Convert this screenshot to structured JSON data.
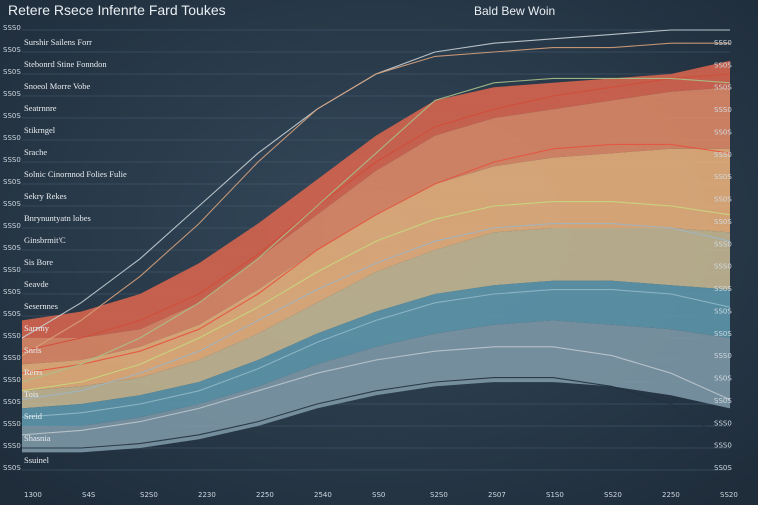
{
  "chart_data": {
    "type": "area",
    "title": "Retere Rsece Infenrte Fard Toukes",
    "subtitle": "Bald Bew Woin",
    "x_tick_labels": [
      "1300",
      "S4S",
      "S2S0",
      "2230",
      "2250",
      "2540",
      "SS0",
      "S2S0",
      "2S07",
      "S1S0",
      "SS20",
      "2250",
      "SS20"
    ],
    "left_tick_labels": [
      "SSS0",
      "SS0S",
      "SS0S",
      "SS0S",
      "SS0S",
      "SSS0",
      "SSS0",
      "SS0S",
      "SS0S",
      "SSS0",
      "SS0S",
      "SSS0",
      "SS0S",
      "SS0S",
      "SSS0",
      "SSS0",
      "SSS0",
      "SS0S",
      "SSS0",
      "SSS0",
      "SS0S"
    ],
    "right_tick_labels": [
      "SSS0",
      "SS0S",
      "SS0S",
      "SSS0",
      "SS0S",
      "SSS0",
      "SS0S",
      "SS0S",
      "SS0S",
      "SSS0",
      "SSS0",
      "SS0S",
      "SS0S",
      "SS0S",
      "SSS0",
      "SS0S",
      "SS0S",
      "SSS0",
      "SSS0",
      "SS0S"
    ],
    "series_labels": [
      "Surshir  Sailens Forr",
      "Stebonrd Stine Fonndon",
      "Snoeol Morre Vobe",
      "Seatrnnre",
      "Stikrngel",
      "Srache",
      "Solnic Cinornnod Folies Fulie",
      "Sekry Rekes",
      "Bnrynuntyatn lobes",
      "Ginsbrmit'C",
      "Sis Bore",
      "Seavde",
      "Sesernnes",
      "Sarrmy",
      "Snrls",
      "Rerrs",
      "Tois",
      "Sreid",
      "Shasnia",
      "Ssuinel"
    ],
    "x": [
      0,
      1,
      2,
      3,
      4,
      5,
      6,
      7,
      8,
      9,
      10,
      11,
      12
    ],
    "bands": [
      {
        "name": "",
        "color": "#d9654d",
        "lower": [
          0.3,
          0.3,
          0.32,
          0.38,
          0.48,
          0.58,
          0.68,
          0.76,
          0.8,
          0.82,
          0.84,
          0.86,
          0.87
        ],
        "upper": [
          0.34,
          0.36,
          0.4,
          0.47,
          0.56,
          0.66,
          0.76,
          0.84,
          0.87,
          0.88,
          0.89,
          0.9,
          0.93
        ]
      },
      {
        "name": "",
        "color": "#e38a66",
        "lower": [
          0.24,
          0.25,
          0.28,
          0.33,
          0.41,
          0.5,
          0.58,
          0.65,
          0.69,
          0.71,
          0.72,
          0.73,
          0.73
        ],
        "upper": [
          0.3,
          0.3,
          0.32,
          0.38,
          0.48,
          0.58,
          0.68,
          0.76,
          0.8,
          0.82,
          0.84,
          0.86,
          0.87
        ]
      },
      {
        "name": "",
        "color": "#ebb27c",
        "lower": [
          0.18,
          0.19,
          0.21,
          0.25,
          0.31,
          0.38,
          0.45,
          0.5,
          0.54,
          0.55,
          0.55,
          0.55,
          0.54
        ],
        "upper": [
          0.24,
          0.25,
          0.28,
          0.33,
          0.41,
          0.5,
          0.58,
          0.65,
          0.69,
          0.71,
          0.72,
          0.73,
          0.73
        ]
      },
      {
        "name": "",
        "color": "#c7b994",
        "lower": [
          0.14,
          0.15,
          0.17,
          0.2,
          0.25,
          0.31,
          0.36,
          0.4,
          0.42,
          0.43,
          0.43,
          0.42,
          0.41
        ],
        "upper": [
          0.18,
          0.19,
          0.21,
          0.25,
          0.31,
          0.38,
          0.45,
          0.5,
          0.54,
          0.55,
          0.55,
          0.55,
          0.54
        ]
      },
      {
        "name": "",
        "color": "#5f97ad",
        "lower": [
          0.1,
          0.1,
          0.12,
          0.15,
          0.19,
          0.24,
          0.28,
          0.31,
          0.33,
          0.34,
          0.33,
          0.32,
          0.3
        ],
        "upper": [
          0.14,
          0.15,
          0.17,
          0.2,
          0.25,
          0.31,
          0.36,
          0.4,
          0.42,
          0.43,
          0.43,
          0.42,
          0.41
        ]
      },
      {
        "name": "",
        "color": "#7f9aa8",
        "lower": [
          0.04,
          0.04,
          0.05,
          0.07,
          0.1,
          0.14,
          0.17,
          0.19,
          0.2,
          0.2,
          0.19,
          0.17,
          0.14
        ],
        "upper": [
          0.1,
          0.1,
          0.12,
          0.15,
          0.19,
          0.24,
          0.28,
          0.31,
          0.33,
          0.34,
          0.33,
          0.32,
          0.3
        ]
      }
    ],
    "lines": [
      {
        "name": "",
        "color": "#c8cfd5",
        "values": [
          0.3,
          0.38,
          0.48,
          0.6,
          0.72,
          0.82,
          0.9,
          0.95,
          0.97,
          0.98,
          0.99,
          1.0,
          1.0
        ]
      },
      {
        "name": "",
        "color": "#d6a07a",
        "values": [
          0.26,
          0.34,
          0.44,
          0.56,
          0.7,
          0.82,
          0.9,
          0.94,
          0.95,
          0.96,
          0.96,
          0.97,
          0.97
        ]
      },
      {
        "name": "",
        "color": "#e5533e",
        "values": [
          0.22,
          0.24,
          0.27,
          0.32,
          0.4,
          0.5,
          0.58,
          0.65,
          0.7,
          0.73,
          0.74,
          0.74,
          0.72
        ]
      },
      {
        "name": "",
        "color": "#d24d3a",
        "values": [
          0.27,
          0.3,
          0.34,
          0.4,
          0.49,
          0.6,
          0.7,
          0.78,
          0.82,
          0.85,
          0.87,
          0.89,
          0.9
        ]
      },
      {
        "name": "",
        "color": "#a9c18a",
        "values": [
          0.2,
          0.24,
          0.3,
          0.38,
          0.48,
          0.6,
          0.72,
          0.84,
          0.88,
          0.89,
          0.89,
          0.89,
          0.88
        ]
      },
      {
        "name": "",
        "color": "#9fb4c2",
        "values": [
          0.16,
          0.18,
          0.22,
          0.27,
          0.34,
          0.41,
          0.47,
          0.52,
          0.55,
          0.56,
          0.56,
          0.55,
          0.52
        ]
      },
      {
        "name": "",
        "color": "#c7d87e",
        "values": [
          0.18,
          0.2,
          0.24,
          0.3,
          0.37,
          0.45,
          0.52,
          0.57,
          0.6,
          0.61,
          0.61,
          0.6,
          0.58
        ]
      },
      {
        "name": "",
        "color": "#bcc6cd",
        "values": [
          0.08,
          0.09,
          0.11,
          0.14,
          0.18,
          0.22,
          0.25,
          0.27,
          0.28,
          0.28,
          0.26,
          0.22,
          0.16
        ]
      },
      {
        "name": "",
        "color": "#8fb8c8",
        "values": [
          0.12,
          0.13,
          0.15,
          0.18,
          0.23,
          0.29,
          0.34,
          0.38,
          0.4,
          0.41,
          0.41,
          0.4,
          0.37
        ]
      },
      {
        "name": "",
        "color": "#22313f",
        "values": [
          0.05,
          0.05,
          0.06,
          0.08,
          0.11,
          0.15,
          0.18,
          0.2,
          0.21,
          0.21,
          0.19,
          0.15,
          0.06
        ]
      }
    ],
    "ylim": [
      0,
      1
    ],
    "grid": true
  }
}
